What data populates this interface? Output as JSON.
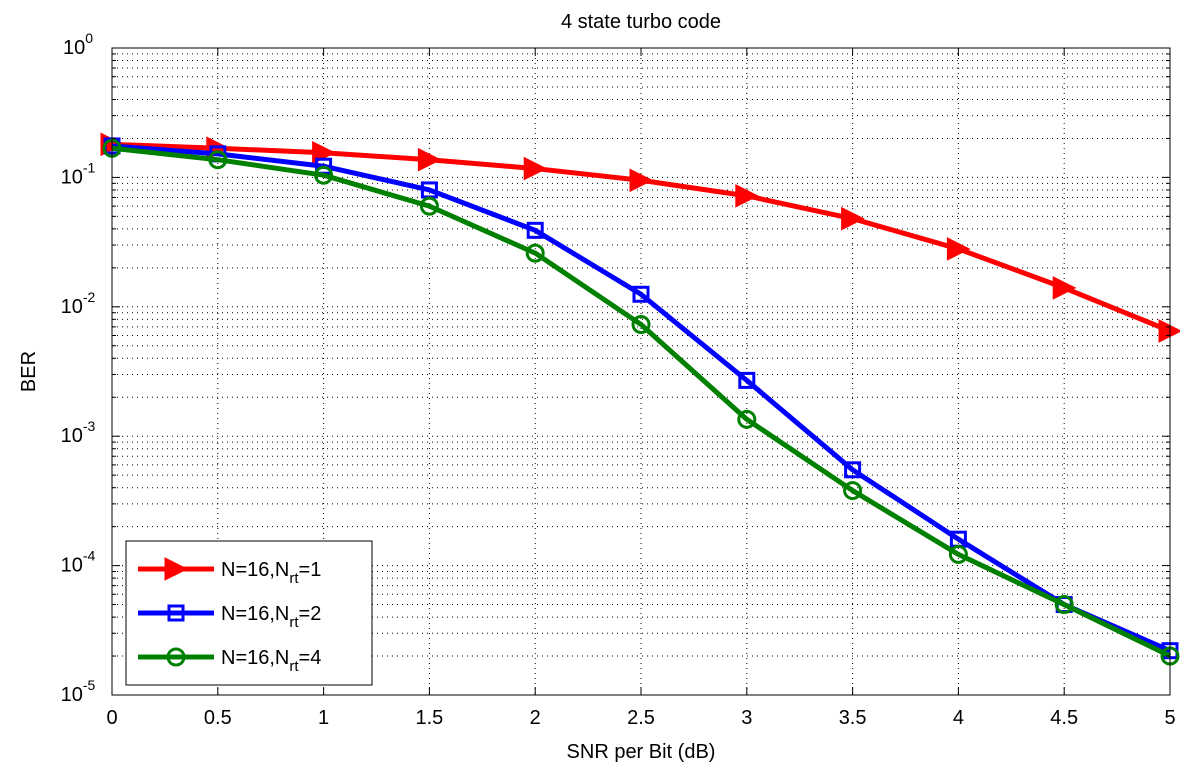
{
  "chart_data": {
    "type": "line",
    "title": "4 state turbo code",
    "xlabel": "SNR per Bit (dB)",
    "ylabel": "BER",
    "xlim": [
      0,
      5
    ],
    "ylim": [
      1e-05,
      1
    ],
    "yscale": "log",
    "grid": true,
    "legend_position": "bottom-left",
    "x": [
      0,
      0.5,
      1,
      1.5,
      2,
      2.5,
      3,
      3.5,
      4,
      4.5,
      5
    ],
    "x_ticks": [
      "0",
      "0.5",
      "1",
      "1.5",
      "2",
      "2.5",
      "3",
      "3.5",
      "4",
      "4.5",
      "5"
    ],
    "y_ticks": [
      {
        "base": "10",
        "exp": "0",
        "value": 1
      },
      {
        "base": "10",
        "exp": "-1",
        "value": 0.1
      },
      {
        "base": "10",
        "exp": "-2",
        "value": 0.01
      },
      {
        "base": "10",
        "exp": "-3",
        "value": 0.001
      },
      {
        "base": "10",
        "exp": "-4",
        "value": 0.0001
      },
      {
        "base": "10",
        "exp": "-5",
        "value": 1e-05
      }
    ],
    "series": [
      {
        "name": "N=16,N_rt=1",
        "legend_main": "N=16,N",
        "legend_sub": "rt",
        "legend_tail": "=1",
        "color": "#ff0000",
        "marker": "triangle-right",
        "values": [
          0.18,
          0.168,
          0.155,
          0.137,
          0.117,
          0.095,
          0.072,
          0.048,
          0.028,
          0.014,
          0.0065
        ]
      },
      {
        "name": "N=16,N_rt=2",
        "legend_main": "N=16,N",
        "legend_sub": "rt",
        "legend_tail": "=2",
        "color": "#0000ff",
        "marker": "square",
        "values": [
          0.175,
          0.152,
          0.122,
          0.08,
          0.039,
          0.0125,
          0.0027,
          0.00055,
          0.00016,
          5e-05,
          2.2e-05
        ]
      },
      {
        "name": "N=16,N_rt=4",
        "legend_main": "N=16,N",
        "legend_sub": "rt",
        "legend_tail": "=4",
        "color": "#008000",
        "marker": "circle",
        "values": [
          0.168,
          0.137,
          0.104,
          0.06,
          0.026,
          0.0073,
          0.00135,
          0.00038,
          0.000122,
          5e-05,
          2e-05
        ]
      }
    ]
  }
}
